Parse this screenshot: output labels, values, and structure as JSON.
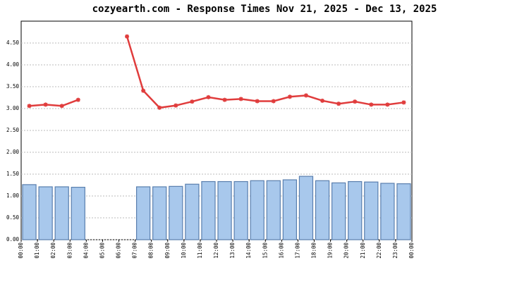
{
  "chart_data": {
    "type": "combo",
    "title": "cozyearth.com - Response Times Nov 21, 2025 - Dec 13, 2025",
    "categories": [
      "00:00",
      "01:00",
      "02:00",
      "03:00",
      "04:00",
      "05:00",
      "06:00",
      "07:00",
      "08:00",
      "09:00",
      "10:00",
      "11:00",
      "12:00",
      "13:00",
      "14:00",
      "15:00",
      "16:00",
      "17:00",
      "18:00",
      "19:00",
      "20:00",
      "21:00",
      "22:00",
      "23:00"
    ],
    "x_end_label": "00:00",
    "series": [
      {
        "kind": "bar",
        "color": "#a8c8ec",
        "values": [
          1.26,
          1.21,
          1.21,
          1.2,
          null,
          null,
          null,
          1.21,
          1.21,
          1.22,
          1.27,
          1.33,
          1.33,
          1.33,
          1.35,
          1.35,
          1.37,
          1.45,
          1.35,
          1.3,
          1.33,
          1.32,
          1.29,
          1.28
        ]
      },
      {
        "kind": "line",
        "color": "#e03c3c",
        "values": [
          3.06,
          3.09,
          3.06,
          3.2,
          null,
          null,
          4.65,
          3.41,
          3.02,
          3.07,
          3.16,
          3.26,
          3.2,
          3.22,
          3.17,
          3.17,
          3.27,
          3.3,
          3.18,
          3.11,
          3.16,
          3.09,
          3.09,
          3.14
        ]
      }
    ],
    "ylim": [
      0,
      5
    ],
    "yticks": [
      {
        "value": 0,
        "label": "0.00"
      },
      {
        "value": 0.5,
        "label": "0.50"
      },
      {
        "value": 1,
        "label": "1.00"
      },
      {
        "value": 1.5,
        "label": "1.50"
      },
      {
        "value": 2,
        "label": "2.00"
      },
      {
        "value": 2.5,
        "label": "2.50"
      },
      {
        "value": 3,
        "label": "3.00"
      },
      {
        "value": 3.5,
        "label": "3.50"
      },
      {
        "value": 4,
        "label": "4.00"
      },
      {
        "value": 4.5,
        "label": "4.50"
      }
    ],
    "grid": true
  }
}
